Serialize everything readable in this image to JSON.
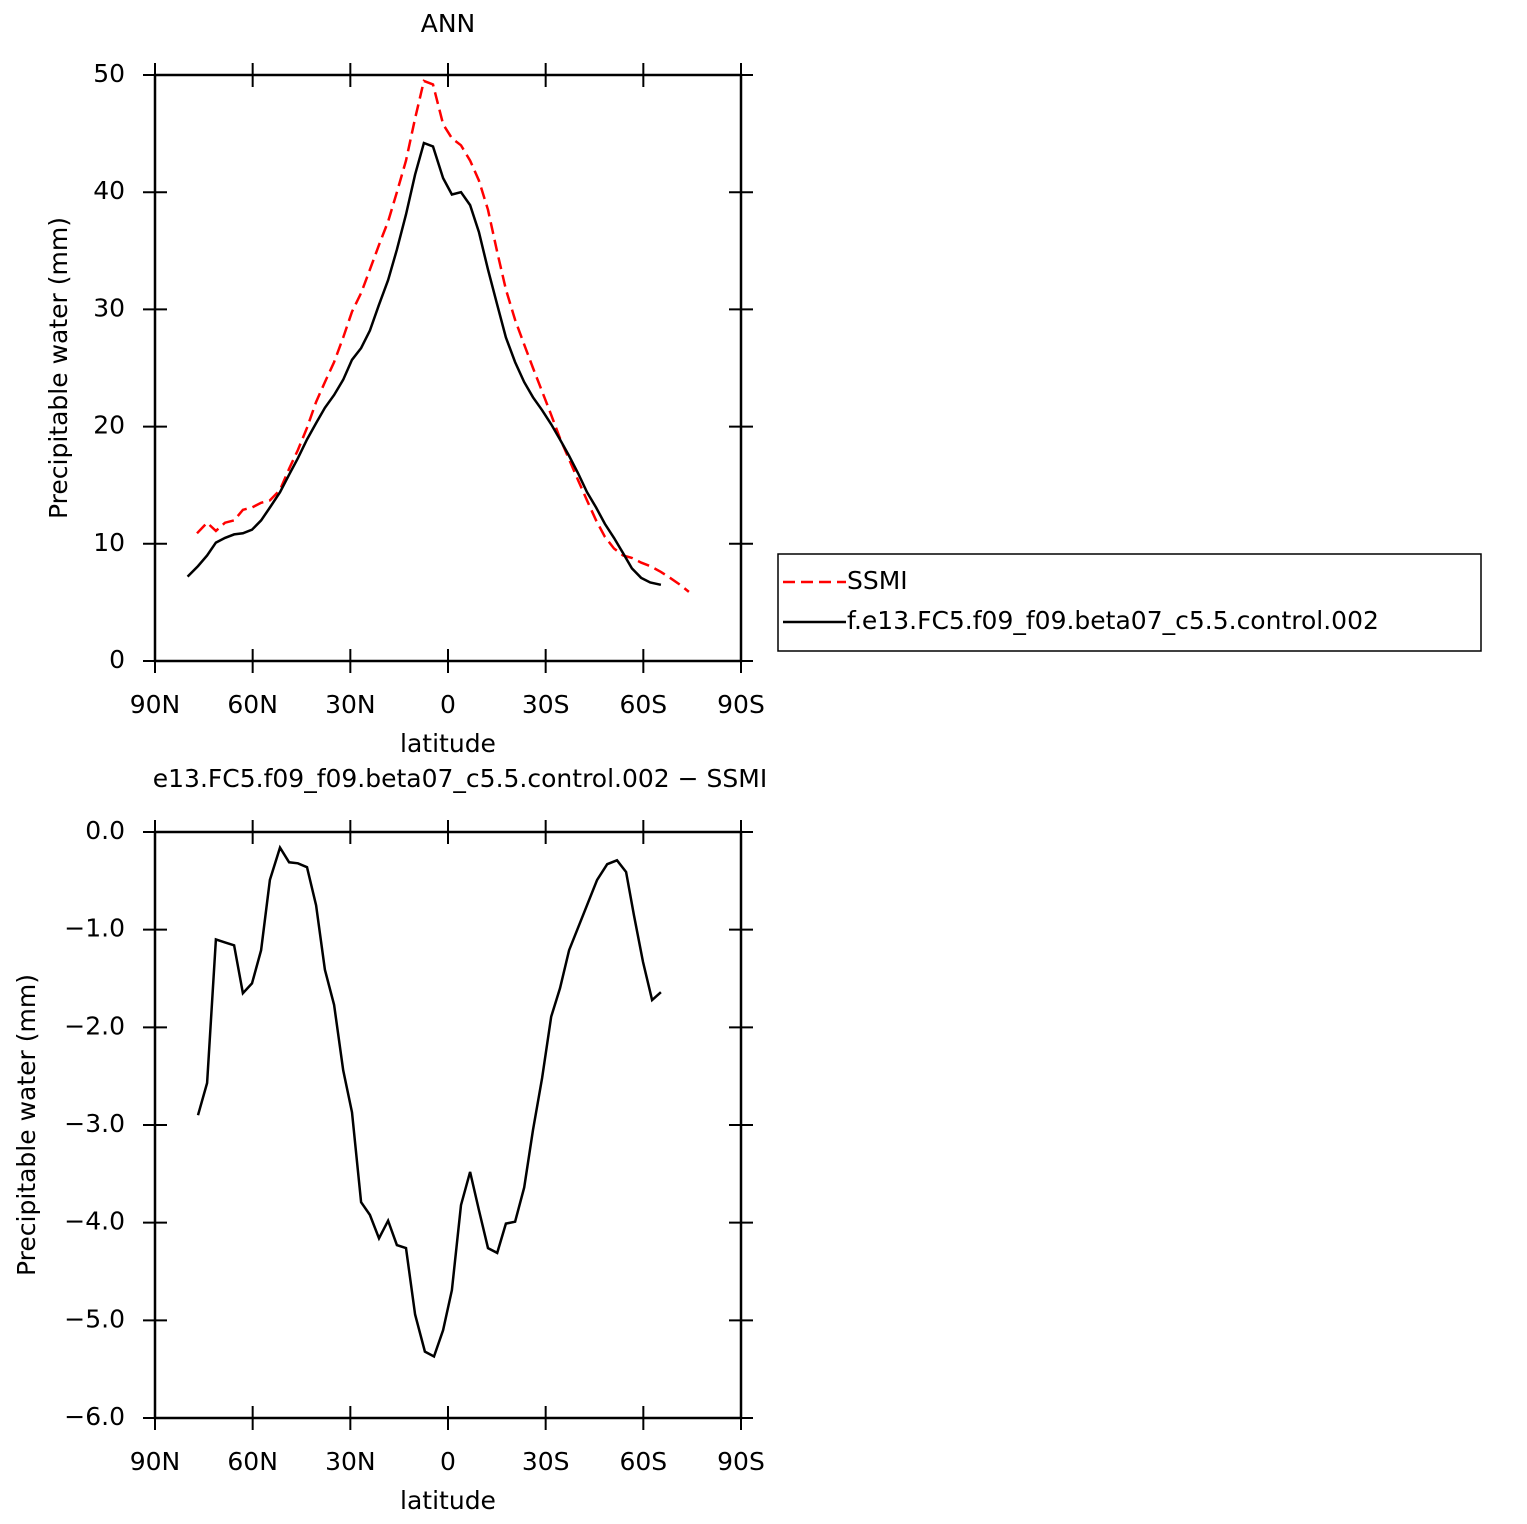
{
  "chart_data": [
    {
      "type": "line",
      "title": "ANN",
      "x_label": "latitude",
      "y_label": "Precipitable water (mm)",
      "xlim": [
        90,
        -90
      ],
      "xticks": [
        {
          "value": 90,
          "label": "90N"
        },
        {
          "value": 60,
          "label": "60N"
        },
        {
          "value": 30,
          "label": "30N"
        },
        0,
        {
          "value": -30,
          "label": "30S"
        },
        {
          "value": -60,
          "label": "60S"
        },
        {
          "value": -90,
          "label": "90S"
        }
      ],
      "ylim": [
        0,
        50
      ],
      "yticks": [
        0,
        10,
        20,
        30,
        40,
        50
      ],
      "legend": "outside-right",
      "series": [
        {
          "name": "SSMI",
          "color": "#ff0000",
          "dash": true,
          "x": [
            77.1,
            74,
            71.3,
            68.5,
            65.7,
            63,
            60.2,
            57.4,
            54.7,
            51.6,
            48.8,
            46.1,
            43.3,
            40.5,
            37.8,
            35,
            32.2,
            29.5,
            26.7,
            24,
            21.2,
            18.4,
            15.7,
            12.9,
            10.1,
            7.4,
            4.6,
            1.5,
            -1.2,
            -4,
            -6.8,
            -9.5,
            -12.3,
            -15.1,
            -17.8,
            -20.6,
            -23.4,
            -26.1,
            -28.9,
            -31.7,
            -34.4,
            -37.2,
            -40,
            -42.7,
            -45.5,
            -48.2,
            -51,
            -53.8,
            -56.5,
            -59.3,
            -62.1,
            -65.4,
            -68.2,
            -71.3,
            -74
          ],
          "values": [
            10.9,
            11.8,
            11.1,
            11.8,
            12.0,
            12.9,
            13.1,
            13.5,
            13.7,
            14.6,
            16.4,
            18.0,
            19.9,
            22.1,
            23.8,
            25.5,
            27.6,
            29.8,
            31.4,
            33.4,
            35.5,
            37.5,
            40.0,
            42.7,
            46.3,
            49.5,
            49.2,
            45.8,
            44.6,
            44.0,
            42.7,
            41.0,
            38.5,
            34.9,
            31.7,
            29.1,
            27.0,
            25.0,
            23.0,
            21.0,
            19.0,
            17.2,
            15.4,
            13.7,
            12.0,
            10.6,
            9.6,
            9.0,
            8.8,
            8.4,
            8.1,
            7.6,
            7.1,
            6.5,
            5.9
          ]
        },
        {
          "name": "f.e13.FC5.f09_f09.beta07_c5.5.control.002",
          "color": "#000000",
          "dash": false,
          "x": [
            80,
            76.8,
            74,
            71.3,
            68.5,
            65.7,
            63,
            60.2,
            57.4,
            54.7,
            51.6,
            48.8,
            46.1,
            43.3,
            40.5,
            37.8,
            35,
            32.2,
            29.5,
            26.7,
            24,
            21.2,
            18.4,
            15.7,
            12.9,
            10.1,
            7.4,
            4.6,
            1.5,
            -1.2,
            -4,
            -6.8,
            -9.5,
            -12.3,
            -15.1,
            -17.8,
            -20.6,
            -23.4,
            -26.1,
            -28.9,
            -31.7,
            -34.4,
            -37.2,
            -40,
            -42.7,
            -45.5,
            -48.2,
            -51,
            -53.8,
            -56.5,
            -59.3,
            -62.1,
            -65.4
          ],
          "values": [
            7.2,
            8.1,
            9.0,
            10.1,
            10.5,
            10.8,
            10.9,
            11.2,
            12.0,
            13.1,
            14.4,
            15.9,
            17.3,
            18.9,
            20.3,
            21.6,
            22.7,
            24.0,
            25.7,
            26.7,
            28.2,
            30.4,
            32.5,
            35.1,
            38.1,
            41.5,
            44.2,
            43.9,
            41.2,
            39.8,
            40.0,
            38.9,
            36.6,
            33.4,
            30.4,
            27.6,
            25.5,
            23.8,
            22.5,
            21.4,
            20.2,
            18.9,
            17.5,
            16.0,
            14.4,
            13.1,
            11.7,
            10.5,
            9.2,
            7.9,
            7.1,
            6.7,
            6.5
          ]
        }
      ]
    },
    {
      "type": "line",
      "title": "e13.FC5.f09_f09.beta07_c5.5.control.002 − SSMI",
      "x_label": "latitude",
      "y_label": "Precipitable water (mm)",
      "xlim": [
        90,
        -90
      ],
      "xticks": [
        {
          "value": 90,
          "label": "90N"
        },
        {
          "value": 60,
          "label": "60N"
        },
        {
          "value": 30,
          "label": "30N"
        },
        0,
        {
          "value": -30,
          "label": "30S"
        },
        {
          "value": -60,
          "label": "60S"
        },
        {
          "value": -90,
          "label": "90S"
        }
      ],
      "ylim": [
        -6,
        0
      ],
      "yticks": [
        {
          "value": 0,
          "label": "0.0"
        },
        {
          "value": -1,
          "label": "−1.0"
        },
        {
          "value": -2,
          "label": "−2.0"
        },
        {
          "value": -3,
          "label": "−3.0"
        },
        {
          "value": -4,
          "label": "−4.0"
        },
        {
          "value": -5,
          "label": "−5.0"
        },
        {
          "value": -6,
          "label": "−6.0"
        }
      ],
      "series": [
        {
          "color": "#000000",
          "dash": false,
          "x": [
            76.8,
            74,
            71.3,
            68.5,
            65.7,
            63,
            60.2,
            57.4,
            54.7,
            51.6,
            48.8,
            46.1,
            43.3,
            40.5,
            37.8,
            35,
            32.2,
            29.5,
            26.7,
            24,
            21.2,
            18.4,
            15.7,
            12.9,
            10.1,
            7.1,
            4.3,
            1.5,
            -1.2,
            -4,
            -6.8,
            -9.5,
            -12.3,
            -15.1,
            -17.8,
            -20.6,
            -23.4,
            -26.1,
            -28.9,
            -31.7,
            -34.4,
            -37.2,
            -45.8,
            -48.9,
            -51.9,
            -54.7,
            -57.1,
            -59.9,
            -62.7,
            -65.4
          ],
          "values": [
            -2.9,
            -2.57,
            -1.1,
            -1.13,
            -1.16,
            -1.65,
            -1.55,
            -1.21,
            -0.49,
            -0.16,
            -0.31,
            -0.32,
            -0.36,
            -0.75,
            -1.41,
            -1.77,
            -2.44,
            -2.87,
            -3.79,
            -3.92,
            -4.16,
            -3.98,
            -4.23,
            -4.26,
            -4.94,
            -5.32,
            -5.37,
            -5.1,
            -4.69,
            -3.82,
            -3.48,
            -3.87,
            -4.26,
            -4.31,
            -4.01,
            -3.99,
            -3.64,
            -3.05,
            -2.52,
            -1.89,
            -1.6,
            -1.21,
            -0.49,
            -0.33,
            -0.29,
            -0.41,
            -0.85,
            -1.33,
            -1.72,
            -1.64
          ]
        }
      ]
    }
  ]
}
